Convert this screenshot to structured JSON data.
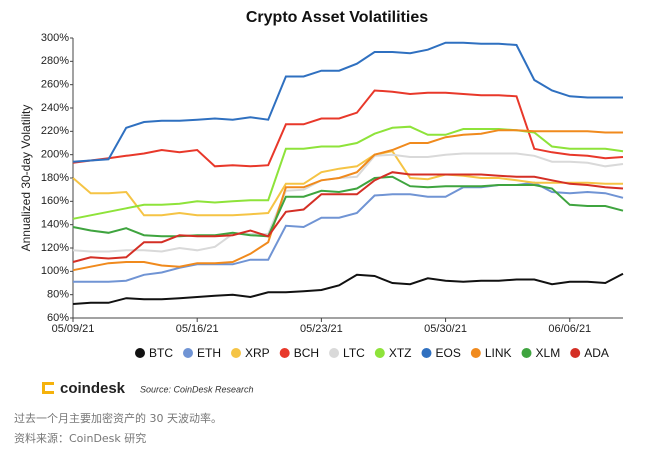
{
  "chart_data": {
    "type": "line",
    "title": "Crypto Asset Volatilities",
    "y_label": "Annualized 30-day Volatility",
    "x": [
      "05/09/21",
      "05/10/21",
      "05/11/21",
      "05/12/21",
      "05/13/21",
      "05/14/21",
      "05/15/21",
      "05/16/21",
      "05/17/21",
      "05/18/21",
      "05/19/21",
      "05/20/21",
      "05/21/21",
      "05/22/21",
      "05/23/21",
      "05/24/21",
      "05/25/21",
      "05/26/21",
      "05/27/21",
      "05/28/21",
      "05/29/21",
      "05/30/21",
      "05/31/21",
      "06/01/21",
      "06/02/21",
      "06/03/21",
      "06/04/21",
      "06/05/21",
      "06/06/21",
      "06/07/21",
      "06/08/21",
      "06/09/21"
    ],
    "xlim": [
      "05/09/21",
      "06/09/21"
    ],
    "xticks": [
      "05/09/21",
      "05/16/21",
      "05/23/21",
      "05/30/21",
      "06/06/21"
    ],
    "ylim": [
      60,
      300
    ],
    "yticks": [
      {
        "value": 60,
        "label": "60%"
      },
      {
        "value": 80,
        "label": "80%"
      },
      {
        "value": 100,
        "label": "100%"
      },
      {
        "value": 120,
        "label": "120%"
      },
      {
        "value": 140,
        "label": "140%"
      },
      {
        "value": 160,
        "label": "160%"
      },
      {
        "value": 180,
        "label": "180%"
      },
      {
        "value": 200,
        "label": "200%"
      },
      {
        "value": 220,
        "label": "220%"
      },
      {
        "value": 240,
        "label": "240%"
      },
      {
        "value": 260,
        "label": "260%"
      },
      {
        "value": 280,
        "label": "280%"
      },
      {
        "value": 300,
        "label": "300%"
      }
    ],
    "series": [
      {
        "name": "BTC",
        "color": "#111111",
        "values": [
          72,
          73,
          73,
          77,
          76,
          76,
          77,
          78,
          79,
          80,
          78,
          82,
          82,
          83,
          84,
          88,
          97,
          96,
          90,
          89,
          94,
          92,
          91,
          92,
          92,
          93,
          93,
          89,
          91,
          91,
          90,
          98
        ]
      },
      {
        "name": "ETH",
        "color": "#7094d4",
        "values": [
          91,
          91,
          91,
          92,
          97,
          99,
          103,
          106,
          106,
          106,
          110,
          110,
          139,
          138,
          146,
          146,
          150,
          165,
          166,
          166,
          164,
          164,
          172,
          172,
          174,
          174,
          176,
          168,
          167,
          168,
          167,
          163
        ]
      },
      {
        "name": "XRP",
        "color": "#f5c445",
        "values": [
          180,
          167,
          167,
          168,
          148,
          148,
          150,
          148,
          148,
          148,
          149,
          150,
          175,
          175,
          185,
          188,
          190,
          200,
          203,
          180,
          179,
          183,
          182,
          180,
          180,
          178,
          176,
          176,
          176,
          176,
          175,
          175
        ]
      },
      {
        "name": "BCH",
        "color": "#e8382a",
        "values": [
          193,
          195,
          197,
          199,
          201,
          204,
          202,
          204,
          190,
          191,
          190,
          191,
          226,
          226,
          231,
          231,
          236,
          255,
          254,
          252,
          253,
          253,
          252,
          251,
          251,
          250,
          205,
          202,
          200,
          199,
          197,
          198
        ]
      },
      {
        "name": "LTC",
        "color": "#d9d9d9",
        "values": [
          118,
          117,
          117,
          118,
          118,
          117,
          120,
          118,
          121,
          132,
          132,
          132,
          169,
          170,
          178,
          180,
          181,
          199,
          200,
          198,
          198,
          200,
          201,
          201,
          201,
          201,
          199,
          194,
          194,
          193,
          190,
          192
        ]
      },
      {
        "name": "XTZ",
        "color": "#8ee33a",
        "values": [
          145,
          148,
          151,
          154,
          157,
          157,
          158,
          160,
          159,
          160,
          161,
          161,
          205,
          205,
          207,
          207,
          210,
          218,
          223,
          224,
          217,
          217,
          222,
          222,
          222,
          221,
          219,
          207,
          205,
          205,
          205,
          203
        ]
      },
      {
        "name": "EOS",
        "color": "#2f70c0",
        "values": [
          194,
          195,
          196,
          223,
          228,
          229,
          229,
          230,
          231,
          230,
          232,
          230,
          267,
          267,
          272,
          272,
          278,
          288,
          288,
          287,
          290,
          296,
          296,
          295,
          295,
          294,
          264,
          255,
          250,
          249,
          249,
          249
        ]
      },
      {
        "name": "LINK",
        "color": "#f08a1d",
        "values": [
          101,
          104,
          107,
          108,
          108,
          105,
          104,
          107,
          107,
          108,
          115,
          125,
          172,
          172,
          178,
          180,
          185,
          200,
          204,
          210,
          210,
          215,
          217,
          218,
          221,
          221,
          220,
          220,
          220,
          220,
          219,
          219
        ]
      },
      {
        "name": "XLM",
        "color": "#3fa43f",
        "values": [
          138,
          135,
          133,
          137,
          131,
          130,
          130,
          131,
          131,
          133,
          131,
          130,
          164,
          164,
          169,
          168,
          171,
          180,
          181,
          173,
          172,
          173,
          173,
          173,
          174,
          174,
          174,
          171,
          157,
          156,
          156,
          152
        ]
      },
      {
        "name": "ADA",
        "color": "#d42f25",
        "values": [
          108,
          112,
          111,
          112,
          125,
          125,
          131,
          130,
          130,
          131,
          135,
          130,
          151,
          153,
          166,
          166,
          166,
          178,
          185,
          183,
          183,
          183,
          183,
          183,
          182,
          181,
          181,
          178,
          175,
          174,
          172,
          171
        ]
      }
    ]
  },
  "footer": {
    "logo": "coindesk",
    "source": "Source: CoinDesk Research"
  },
  "caption": [
    "过去一个月主要加密资产的 30 天波动率。",
    "资料来源：CoinDesk 研究"
  ]
}
